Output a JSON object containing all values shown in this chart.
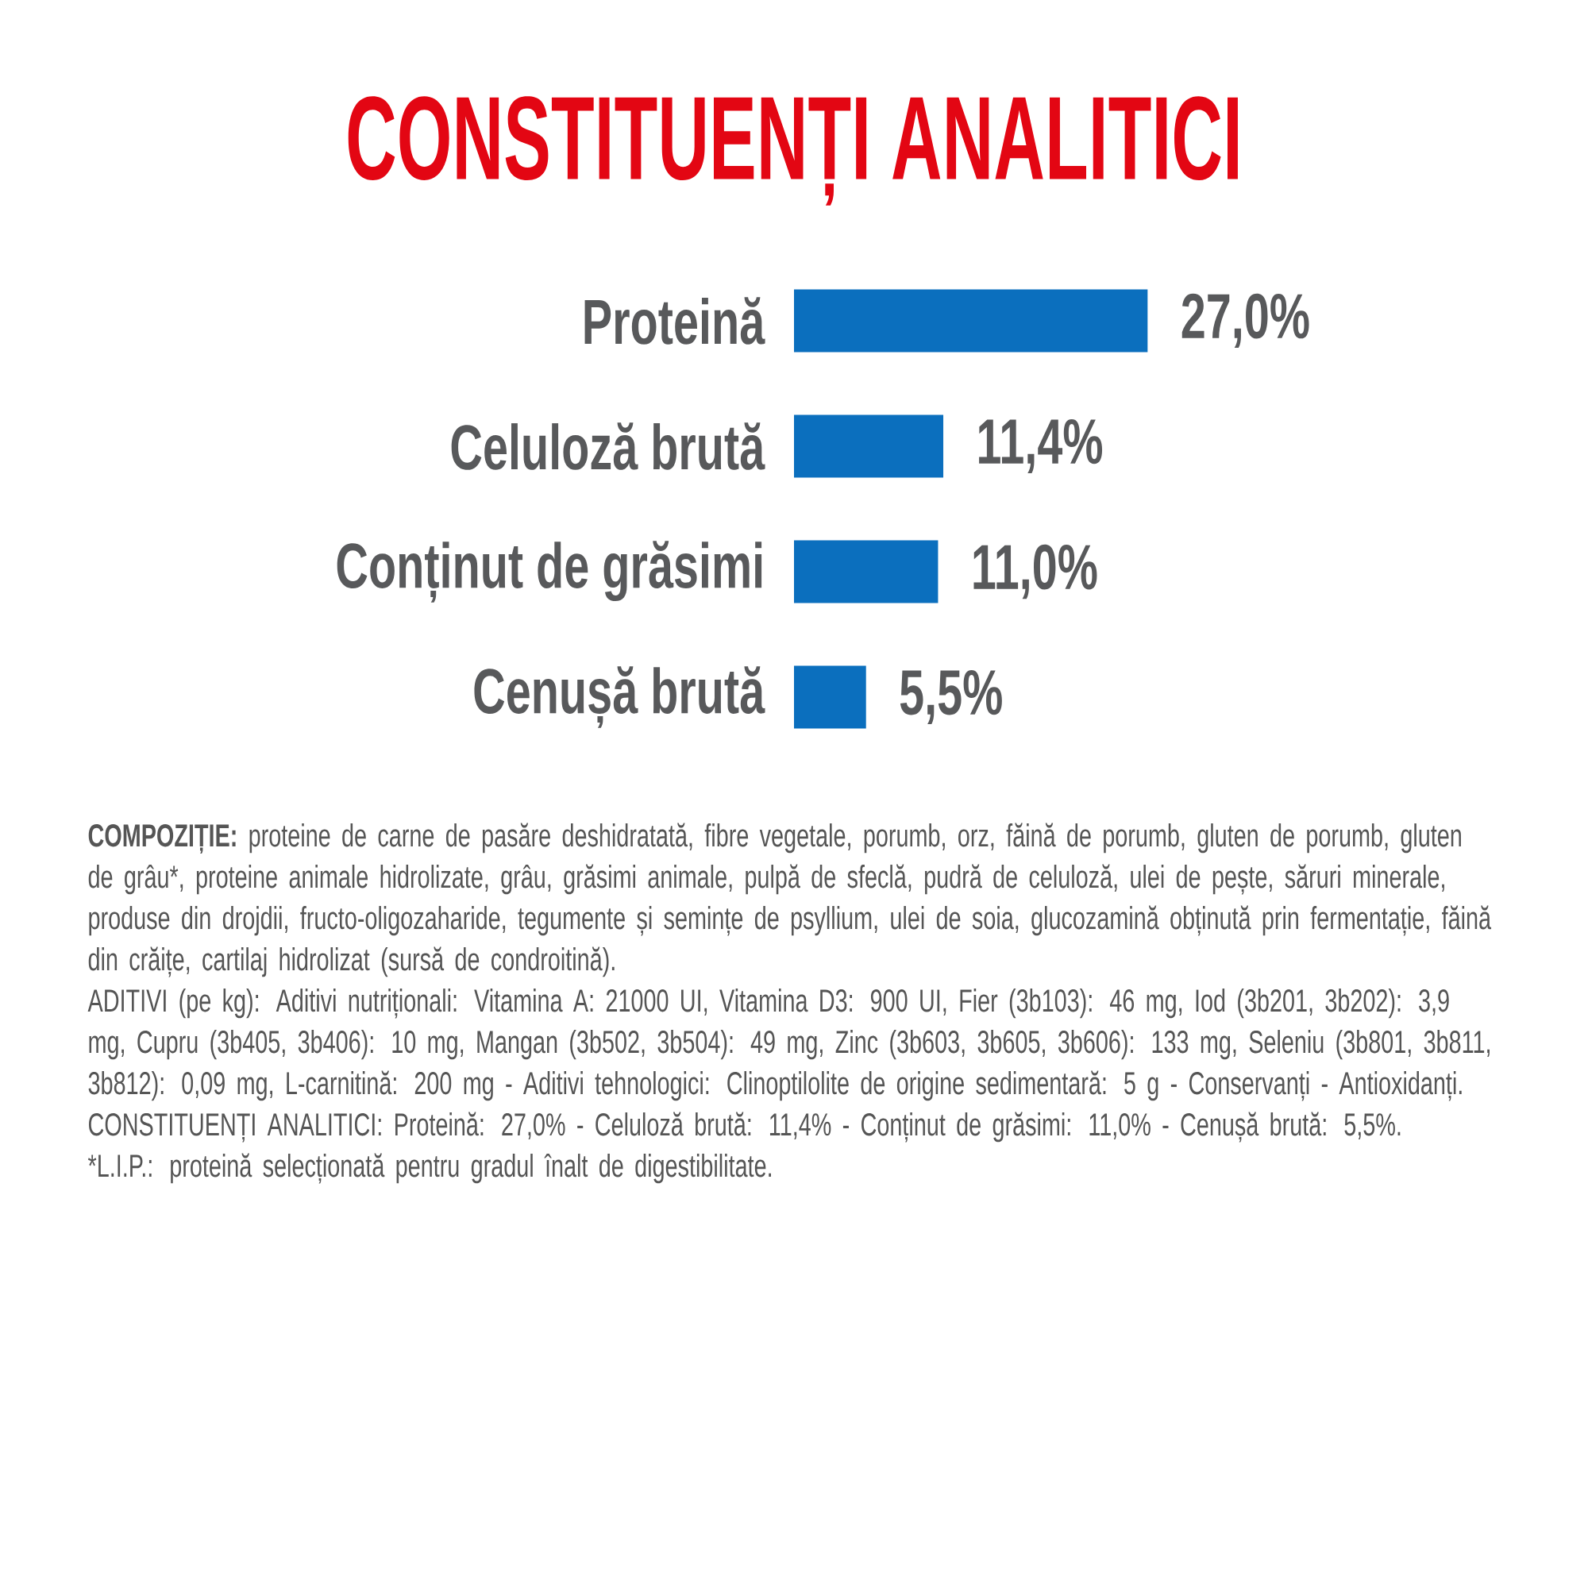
{
  "chart_data": {
    "type": "bar",
    "orientation": "horizontal",
    "title": "CONSTITUENȚI ANALITICI",
    "categories": [
      "Proteină",
      "Celuloză brută",
      "Conținut de grăsimi",
      "Cenușă brută"
    ],
    "values": [
      27.0,
      11.4,
      11.0,
      5.5
    ],
    "value_labels": [
      "27,0%",
      "11,4%",
      "11,0%",
      "5,5%"
    ],
    "color": "#0b6fbe",
    "annotations": [
      "**COMPOZIȚIE:** proteine de carne de pasăre deshidratată, fibre vegetale, porumb, orz, făină de porumb, gluten de porumb, gluten de grâu*, proteine animale hidrolizate, grâu, grăsimi animale, pulpă de sfeclă, pudră de celuloză, ulei de pește, săruri minerale, produse din drojdii, fructo-oligozaharide, tegumente și semințe de psyllium, ulei de soia, glucozamină obținută prin fermentație, făină din crăițe, cartilaj hidrolizat (sursă de condroitină).",
      "ADITIVI (pe kg): Aditivi nutriționali: Vitamina A: 21000 UI, Vitamina D3: 900 UI, Fier (3b103): 46 mg, Iod (3b201, 3b202): 3,9 mg, Cupru (3b405, 3b406): 10 mg, Mangan (3b502, 3b504): 49 mg, Zinc (3b603, 3b605, 3b606): 133 mg, Seleniu (3b801, 3b811, 3b812): 0,09 mg, L-carnitină: 200 mg - Aditivi tehnologici: Clinoptilolite de origine sedimentară: 5 g - Conservanți - Antioxidanți.",
      "CONSTITUENȚI ANALITICI: Proteină: 27,0% - Celuloză brută: 11,4% - Conținut de grăsimi: 11,0% - Cenușă brută: 5,5%.",
      "*L.I.P.: proteină selecționată pentru gradul înalt de digestibilitate."
    ]
  }
}
